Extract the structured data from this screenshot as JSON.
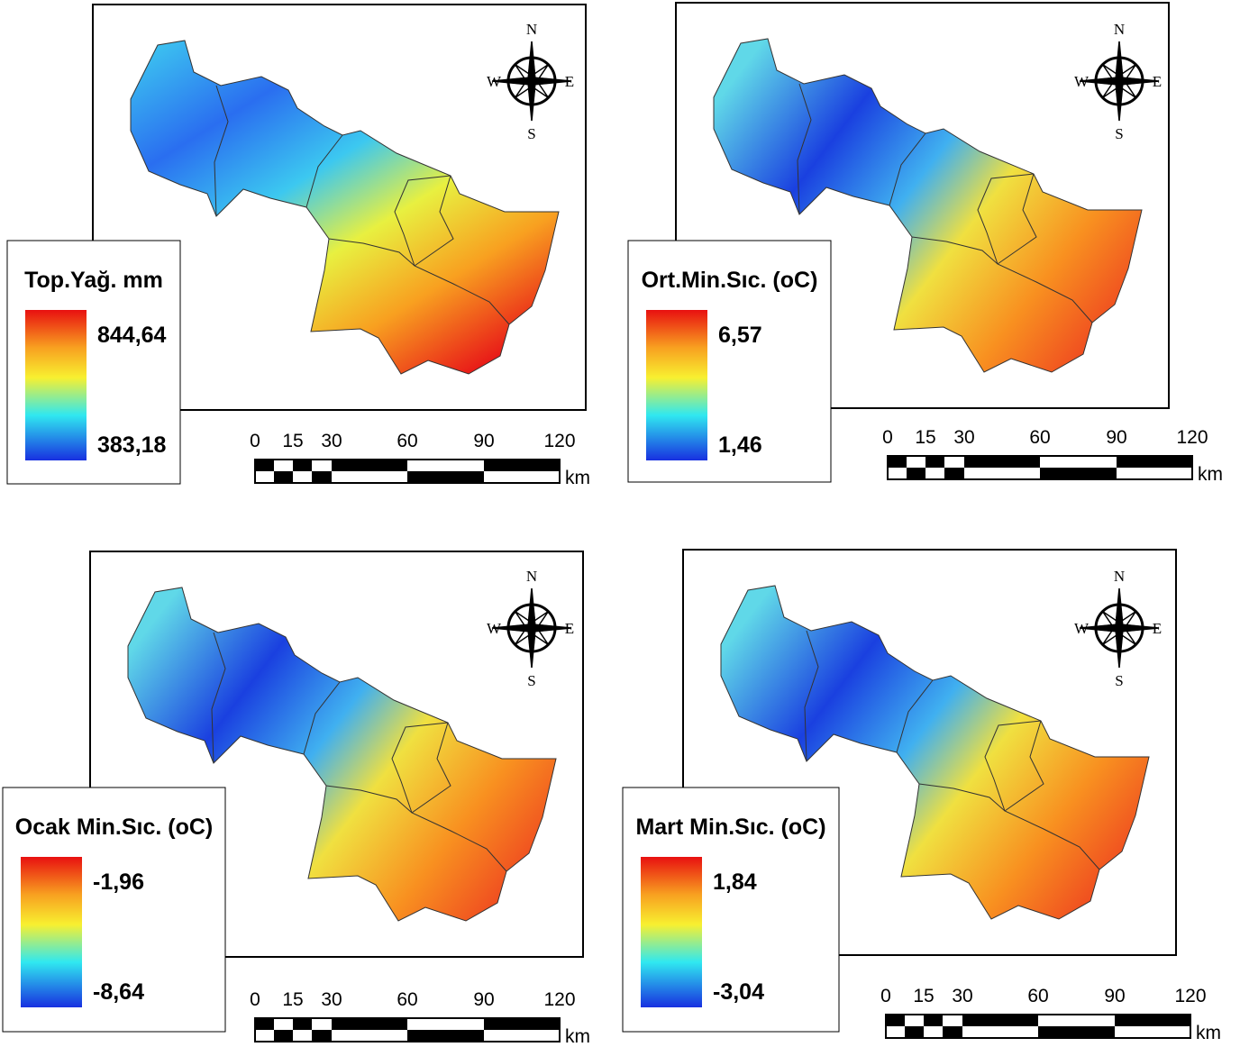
{
  "panels": [
    {
      "legend": {
        "title": "Top.Yağ. mm",
        "max": "844,64",
        "min": "383,18"
      },
      "scale": {
        "ticks": [
          "0",
          "15",
          "30",
          "60",
          "90",
          "120"
        ],
        "unit": "km"
      },
      "compass": {
        "n": "N",
        "e": "E",
        "s": "S",
        "w": "W"
      }
    },
    {
      "legend": {
        "title": "Ort.Min.Sıc. (oC)",
        "max": "6,57",
        "min": "1,46"
      },
      "scale": {
        "ticks": [
          "0",
          "15",
          "30",
          "60",
          "90",
          "120"
        ],
        "unit": "km"
      },
      "compass": {
        "n": "N",
        "e": "E",
        "s": "S",
        "w": "W"
      }
    },
    {
      "legend": {
        "title": "Ocak Min.Sıc. (oC)",
        "max": "-1,96",
        "min": "-8,64"
      },
      "scale": {
        "ticks": [
          "0",
          "15",
          "30",
          "60",
          "90",
          "120"
        ],
        "unit": "km"
      },
      "compass": {
        "n": "N",
        "e": "E",
        "s": "S",
        "w": "W"
      }
    },
    {
      "legend": {
        "title": "Mart Min.Sıc. (oC)",
        "max": "1,84",
        "min": "-3,04"
      },
      "scale": {
        "ticks": [
          "0",
          "15",
          "30",
          "60",
          "90",
          "120"
        ],
        "unit": "km"
      },
      "compass": {
        "n": "N",
        "e": "E",
        "s": "S",
        "w": "W"
      }
    }
  ]
}
